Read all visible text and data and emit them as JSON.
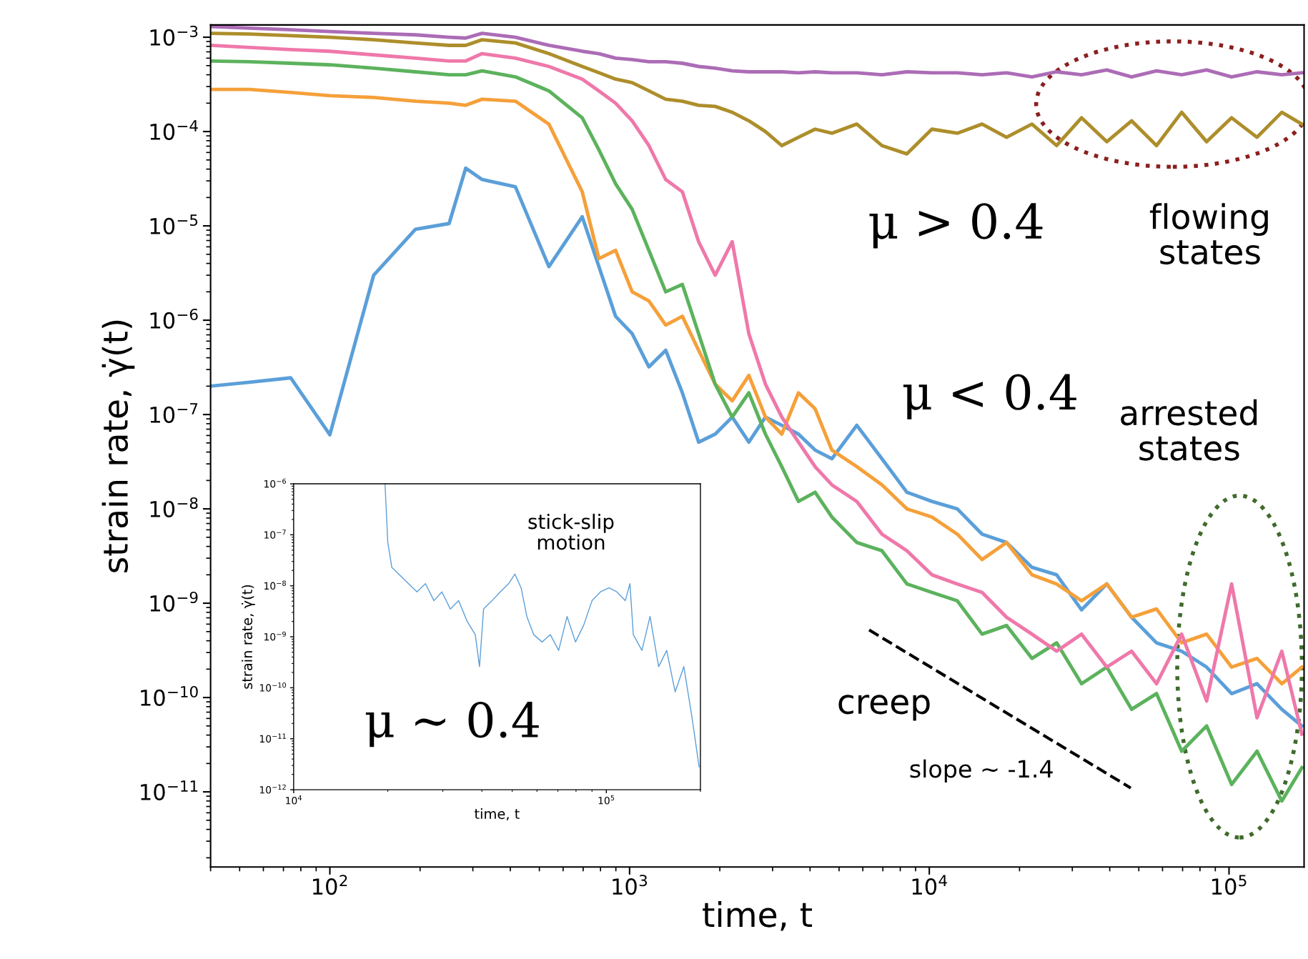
{
  "chart_data": [
    {
      "type": "line",
      "log": "xy",
      "grid": false,
      "line_style": "solid",
      "xlabel": "time, t",
      "ylabel": "strain rate, γ̇(t)",
      "xlim": [
        40,
        178000
      ],
      "ylim": [
        1.6e-12,
        0.00135
      ],
      "xticks": [
        {
          "value": 100,
          "label": "10$^{2}$"
        },
        {
          "value": 1000,
          "label": "10$^{3}$"
        },
        {
          "value": 10000,
          "label": "10$^{4}$"
        },
        {
          "value": 100000,
          "label": "10$^{5}$"
        }
      ],
      "yticks": [
        {
          "value": 0.001,
          "label": "10$^{−3}$"
        },
        {
          "value": 0.0001,
          "label": "10$^{−4}$"
        },
        {
          "value": 1e-05,
          "label": "10$^{−5}$"
        },
        {
          "value": 1e-06,
          "label": "10$^{−6}$"
        },
        {
          "value": 1e-07,
          "label": "10$^{−7}$"
        },
        {
          "value": 1e-08,
          "label": "10$^{−8}$"
        },
        {
          "value": 1e-09,
          "label": "10$^{−9}$"
        },
        {
          "value": 1e-10,
          "label": "10$^{−10}$"
        },
        {
          "value": 1e-11,
          "label": "10$^{−11}$"
        }
      ],
      "x": [
        40,
        54,
        74,
        100,
        140,
        193,
        250,
        284,
        322,
        416,
        538,
        695,
        790,
        898,
        1020,
        1160,
        1320,
        1500,
        1700,
        1930,
        2200,
        2500,
        2840,
        3220,
        3660,
        4160,
        4730,
        5730,
        6950,
        8420,
        10200,
        12400,
        15000,
        18100,
        22000,
        26600,
        32200,
        39100,
        47300,
        57300,
        69500,
        84200,
        102000,
        124000,
        150000,
        175000
      ],
      "series": [
        {
          "color": "#5b9fd9",
          "values": [
            2e-07,
            2.2e-07,
            2.45e-07,
            6.1e-08,
            3e-06,
            9.2e-06,
            1.06e-05,
            4.1e-05,
            3.1e-05,
            2.6e-05,
            3.7e-06,
            1.25e-05,
            3.7e-06,
            1.1e-06,
            7.2e-07,
            3.2e-07,
            4.8e-07,
            1.7e-07,
            5.1e-08,
            6.2e-08,
            9.4e-08,
            5.1e-08,
            9.4e-08,
            7.7e-08,
            6.2e-08,
            4.2e-08,
            3.4e-08,
            7.7e-08,
            3.4e-08,
            1.5e-08,
            1.2e-08,
            1e-08,
            5.4e-09,
            4.4e-09,
            2.4e-09,
            2e-09,
            8.5e-10,
            1.6e-09,
            7.1e-10,
            3.8e-10,
            3.1e-10,
            2.1e-10,
            1.1e-10,
            1.4e-10,
            7.5e-11,
            5e-11
          ]
        },
        {
          "color": "#f5a03a",
          "values": [
            0.00028,
            0.00028,
            0.00026,
            0.00024,
            0.00023,
            0.00021,
            0.0002,
            0.00019,
            0.00022,
            0.00021,
            0.00012,
            2.3e-05,
            4.5e-06,
            5.5e-06,
            2e-06,
            1.6e-06,
            8.9e-07,
            1.1e-06,
            4.8e-07,
            2.1e-07,
            1.4e-07,
            2.6e-07,
            9.4e-08,
            6.2e-08,
            1.7e-07,
            1.15e-07,
            4.2e-08,
            2.8e-08,
            1.8e-08,
            1e-08,
            8.2e-09,
            5.4e-09,
            2.9e-09,
            4.4e-09,
            2e-09,
            1.6e-09,
            1.06e-09,
            1.6e-09,
            7.1e-10,
            8.7e-10,
            3.8e-10,
            4.7e-10,
            2.1e-10,
            2.6e-10,
            1.4e-10,
            2.1e-10
          ]
        },
        {
          "color": "#5cb25d",
          "values": [
            0.00056,
            0.00055,
            0.00053,
            0.00051,
            0.00047,
            0.00043,
            0.0004,
            0.0004,
            0.00044,
            0.00038,
            0.00027,
            0.00014,
            6.4e-05,
            2.8e-05,
            1.5e-05,
            5.5e-06,
            2e-06,
            2.4e-06,
            7.2e-07,
            2.1e-07,
            9.4e-08,
            1.7e-07,
            6.2e-08,
            2.8e-08,
            1.2e-08,
            1.5e-08,
            8.2e-09,
            4.4e-09,
            3.6e-09,
            1.6e-09,
            1.3e-09,
            1.06e-09,
            4.7e-10,
            5.8e-10,
            2.6e-10,
            3.8e-10,
            1.4e-10,
            2.1e-10,
            7.5e-11,
            1.1e-10,
            2.7e-11,
            5e-11,
            1.2e-11,
            2.7e-11,
            8e-12,
            1.8e-11
          ]
        },
        {
          "color": "#ef78aa",
          "values": [
            0.00082,
            0.00078,
            0.00074,
            0.00071,
            0.00065,
            0.0006,
            0.00056,
            0.00056,
            0.00067,
            0.0006,
            0.00049,
            0.00036,
            0.00027,
            0.0002,
            0.00013,
            7.1e-05,
            3.1e-05,
            2.3e-05,
            6.8e-06,
            3e-06,
            6.8e-06,
            7.2e-07,
            2.1e-07,
            9.4e-08,
            5.1e-08,
            2.8e-08,
            1.8e-08,
            1.2e-08,
            5.4e-09,
            3.6e-09,
            2e-09,
            1.6e-09,
            1.3e-09,
            7.1e-10,
            4.7e-10,
            3.1e-10,
            4.7e-10,
            2.1e-10,
            3.1e-10,
            1.4e-10,
            4.7e-10,
            9.2e-11,
            1.6e-09,
            6.1e-11,
            3.1e-10,
            4.1e-11
          ]
        },
        {
          "color": "#ad8e2b",
          "values": [
            0.0011,
            0.00108,
            0.00104,
            0.001,
            0.00094,
            0.00087,
            0.00082,
            0.00082,
            0.00094,
            0.00087,
            0.00067,
            0.00049,
            0.00042,
            0.00036,
            0.00033,
            0.00027,
            0.00022,
            0.00021,
            0.00019,
            0.000185,
            0.00016,
            0.00013,
            0.0001,
            7.1e-05,
            8.7e-05,
            0.000106,
            9.6e-05,
            0.00012,
            7.1e-05,
            5.8e-05,
            0.000106,
            9.6e-05,
            0.00012,
            8.7e-05,
            0.00012,
            7.1e-05,
            0.00014,
            7.8e-05,
            0.00013,
            7.1e-05,
            0.00016,
            7.8e-05,
            0.00014,
            8.7e-05,
            0.00016,
            0.00012
          ]
        },
        {
          "color": "#ac6cb6",
          "values": [
            0.0013,
            0.00125,
            0.0012,
            0.00115,
            0.0011,
            0.00106,
            0.001,
            0.00098,
            0.0011,
            0.001,
            0.00082,
            0.00071,
            0.00067,
            0.0006,
            0.00058,
            0.00055,
            0.00055,
            0.00053,
            0.00049,
            0.00047,
            0.00044,
            0.00043,
            0.00043,
            0.00043,
            0.00042,
            0.00043,
            0.00042,
            0.00042,
            0.0004,
            0.00043,
            0.00042,
            0.00042,
            0.0004,
            0.00042,
            0.00038,
            0.00043,
            0.0004,
            0.00045,
            0.00038,
            0.00044,
            0.0004,
            0.00045,
            0.00038,
            0.00043,
            0.0004,
            0.00042
          ]
        },
        {
          "type": "line",
          "line_style": "dashed",
          "color": "#000000",
          "x": [
            6300,
            47000
          ],
          "values": [
            5.2e-10,
            1.1e-11
          ]
        }
      ],
      "annotations": [
        "μ > 0.4",
        "flowing\nstates",
        "μ < 0.4",
        "arrested\nstates",
        "creep",
        "slope ~ -1.4"
      ]
    },
    {
      "type": "line",
      "log": "xy",
      "grid": false,
      "line_style": "solid",
      "xlabel": "time, t",
      "ylabel": "strain rate, γ̇(t)",
      "xlim": [
        10000,
        200000
      ],
      "ylim": [
        1e-12,
        1e-06
      ],
      "xticks": [
        {
          "value": 10000,
          "label": "10$^{4}$"
        },
        {
          "value": 100000,
          "label": "10$^{5}$"
        }
      ],
      "yticks": [
        {
          "value": 1e-12,
          "label": "10$^{−12}$"
        },
        {
          "value": 1e-11,
          "label": "10$^{−11}$"
        },
        {
          "value": 1e-10,
          "label": "10$^{−10}$"
        },
        {
          "value": 1e-09,
          "label": "10$^{−9}$"
        },
        {
          "value": 1e-08,
          "label": "10$^{−8}$"
        },
        {
          "value": 1e-07,
          "label": "10$^{−7}$"
        },
        {
          "value": 1e-06,
          "label": "10$^{−6}$"
        }
      ],
      "x": [
        19600,
        20000,
        20600,
        21900,
        23300,
        24800,
        26400,
        28100,
        29800,
        31700,
        33700,
        35900,
        38100,
        39300,
        40500,
        43100,
        45800,
        48700,
        51000,
        53400,
        55700,
        58600,
        62300,
        66200,
        70400,
        74900,
        79700,
        84700,
        90000,
        95800,
        102000,
        108000,
        115000,
        119000,
        122000,
        130000,
        138000,
        147000,
        156000,
        166000,
        177000,
        188000,
        198000
      ],
      "series": [
        {
          "color": "#5b9fd9",
          "values": [
            1e-06,
            7.2e-08,
            2.3e-08,
            1.6e-08,
            1.1e-08,
            7.6e-09,
            1.1e-08,
            5.1e-09,
            7.6e-09,
            3.5e-09,
            5.1e-09,
            2e-09,
            1.1e-09,
            2.6e-10,
            3.5e-09,
            5.1e-09,
            7.6e-09,
            1.1e-08,
            1.7e-08,
            9.1e-09,
            2.5e-09,
            1.1e-09,
            7.9e-10,
            1.1e-09,
            5.4e-10,
            2.5e-09,
            7.9e-10,
            1.7e-09,
            5.1e-09,
            7.6e-09,
            9.1e-09,
            7.6e-09,
            5.1e-09,
            1.1e-08,
            1.1e-09,
            5.4e-10,
            2.5e-09,
            2.6e-10,
            5.4e-10,
            8.3e-11,
            2.6e-10,
            2.6e-11,
            2.8e-12
          ]
        }
      ],
      "annotations": [
        "stick-slip\nmotion",
        "μ ~ 0.4"
      ]
    }
  ]
}
